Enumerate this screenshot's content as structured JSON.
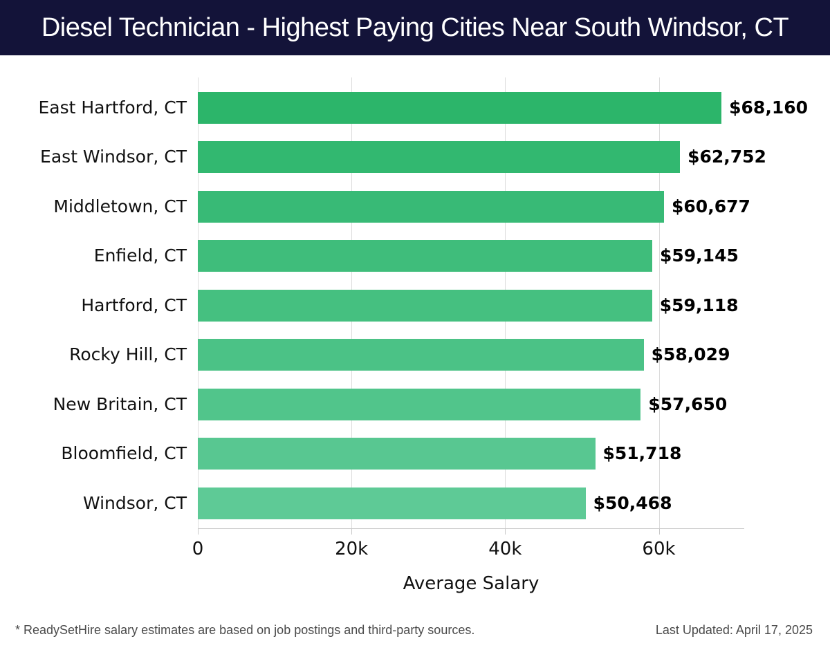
{
  "header": {
    "title": "Diesel Technician - Highest Paying Cities Near South Windsor, CT"
  },
  "chart_data": {
    "type": "bar",
    "orientation": "horizontal",
    "title": "Diesel Technician - Highest Paying Cities Near South Windsor, CT",
    "categories": [
      "East Hartford, CT",
      "East Windsor, CT",
      "Middletown, CT",
      "Enfield, CT",
      "Hartford, CT",
      "Rocky Hill, CT",
      "New Britain, CT",
      "Bloomfield, CT",
      "Windsor, CT"
    ],
    "values": [
      68160,
      62752,
      60677,
      59145,
      59118,
      58029,
      57650,
      51718,
      50468
    ],
    "value_labels": [
      "$68,160",
      "$62,752",
      "$60,677",
      "$59,145",
      "$59,118",
      "$58,029",
      "$57,650",
      "$51,718",
      "$50,468"
    ],
    "xlabel": "Average Salary",
    "x_ticks": [
      0,
      20000,
      40000,
      60000
    ],
    "x_tick_labels": [
      "0",
      "20k",
      "40k",
      "60k"
    ],
    "xlim": [
      0,
      71100
    ],
    "grid": true,
    "legend": "none",
    "bar_colors": [
      "#2cb56a",
      "#32b870",
      "#38ba76",
      "#3fbd7b",
      "#45c080",
      "#4bc286",
      "#51c58b",
      "#58c791",
      "#5eca96"
    ]
  },
  "footer": {
    "note": "* ReadySetHire salary estimates are based on job postings and third-party sources.",
    "last_updated": "Last Updated: April 17, 2025"
  },
  "colors": {
    "header_bg": "#131339",
    "title_text": "#ffffff",
    "gridline": "#dcdcdc",
    "axis_line": "#c9c9c9",
    "label_text": "#111111",
    "value_text": "#000000",
    "footer_text": "#4a4a4a"
  }
}
